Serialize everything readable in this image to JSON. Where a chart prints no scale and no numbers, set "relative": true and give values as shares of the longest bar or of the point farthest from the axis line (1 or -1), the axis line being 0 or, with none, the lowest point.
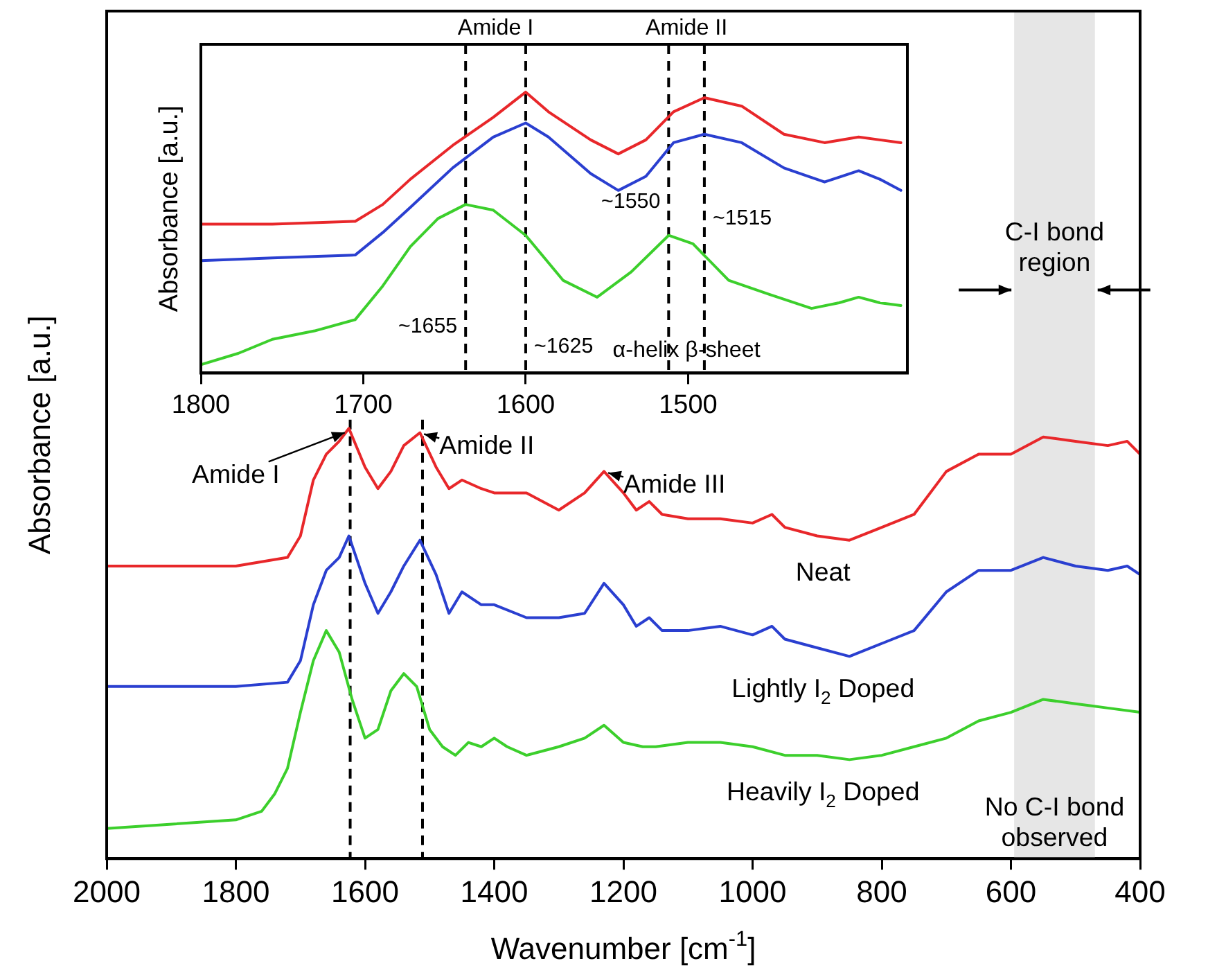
{
  "chart_data": [
    {
      "type": "line",
      "xlabel": "Wavenumber [cm$^{-1}$]",
      "ylabel": "Absorbance [a.u.]",
      "relative": true,
      "xlim": [
        2000,
        400
      ],
      "xticks": [
        2000,
        1800,
        1600,
        1400,
        1200,
        1000,
        800,
        600,
        400
      ],
      "tick_labels": "x",
      "grid": false,
      "legend": false,
      "marker": "none",
      "line_style": "solid",
      "x": [
        2000,
        1800,
        1720,
        1700,
        1680,
        1660,
        1640,
        1625,
        1600,
        1580,
        1560,
        1540,
        1515,
        1490,
        1470,
        1450,
        1420,
        1400,
        1350,
        1300,
        1260,
        1230,
        1200,
        1180,
        1160,
        1140,
        1100,
        1050,
        1000,
        970,
        950,
        900,
        850,
        800,
        750,
        700,
        650,
        600,
        550,
        500,
        450,
        420,
        400
      ],
      "series": [
        {
          "name": "Neat",
          "color": "#e8272a",
          "values": [
            0.68,
            0.68,
            0.7,
            0.75,
            0.88,
            0.94,
            0.97,
            1.0,
            0.91,
            0.86,
            0.9,
            0.96,
            0.99,
            0.91,
            0.86,
            0.88,
            0.86,
            0.85,
            0.85,
            0.81,
            0.85,
            0.9,
            0.85,
            0.81,
            0.83,
            0.8,
            0.79,
            0.79,
            0.78,
            0.8,
            0.77,
            0.75,
            0.74,
            0.77,
            0.8,
            0.9,
            0.94,
            0.94,
            0.98,
            0.97,
            0.96,
            0.97,
            0.94
          ]
        },
        {
          "name": "Lightly I$_{2}$ Doped",
          "color": "#2a3fd0",
          "values": [
            0.4,
            0.4,
            0.41,
            0.46,
            0.59,
            0.67,
            0.7,
            0.75,
            0.64,
            0.57,
            0.62,
            0.68,
            0.74,
            0.66,
            0.57,
            0.62,
            0.59,
            0.59,
            0.56,
            0.56,
            0.57,
            0.64,
            0.59,
            0.54,
            0.56,
            0.53,
            0.53,
            0.54,
            0.52,
            0.54,
            0.51,
            0.49,
            0.47,
            0.5,
            0.53,
            0.62,
            0.67,
            0.67,
            0.7,
            0.68,
            0.67,
            0.68,
            0.66
          ]
        },
        {
          "name": "Heavily I$_{2}$ Doped",
          "color": "#3ccf2c",
          "x": [
            2000,
            1800,
            1760,
            1740,
            1720,
            1700,
            1680,
            1660,
            1640,
            1620,
            1600,
            1580,
            1560,
            1540,
            1520,
            1500,
            1480,
            1460,
            1440,
            1420,
            1400,
            1380,
            1350,
            1300,
            1260,
            1230,
            1200,
            1170,
            1150,
            1100,
            1050,
            1000,
            950,
            900,
            850,
            800,
            750,
            700,
            650,
            600,
            550,
            500,
            450,
            400
          ],
          "values": [
            0.07,
            0.09,
            0.11,
            0.15,
            0.21,
            0.34,
            0.46,
            0.53,
            0.48,
            0.37,
            0.28,
            0.3,
            0.39,
            0.43,
            0.4,
            0.3,
            0.26,
            0.24,
            0.27,
            0.26,
            0.28,
            0.26,
            0.24,
            0.26,
            0.28,
            0.31,
            0.27,
            0.26,
            0.26,
            0.27,
            0.27,
            0.26,
            0.24,
            0.24,
            0.23,
            0.24,
            0.26,
            0.28,
            0.32,
            0.34,
            0.37,
            0.36,
            0.35,
            0.34
          ]
        }
      ],
      "ref_lines": [
        {
          "axis": "x",
          "value": 1623,
          "color": "#000000",
          "line_style": "dashed"
        },
        {
          "axis": "x",
          "value": 1511,
          "color": "#000000",
          "line_style": "dashed"
        }
      ],
      "bands": [
        {
          "axis": "x",
          "from": 595,
          "to": 470,
          "label": "C-I bond region",
          "color": "#e6e6e6"
        }
      ],
      "annotations": [
        {
          "text": "Amide I",
          "x": 1625,
          "y": 1.0
        },
        {
          "text": "Amide II",
          "x": 1515,
          "y": 0.99
        },
        {
          "text": "Amide III",
          "x": 1230,
          "y": 0.9
        },
        "No C-I bond observed"
      ]
    },
    {
      "type": "line",
      "ylabel": "Absorbance [a.u.]",
      "relative": true,
      "xlim": [
        1800,
        1365
      ],
      "xticks": [
        1800,
        1700,
        1600,
        1500
      ],
      "tick_labels": "x",
      "grid": false,
      "legend": false,
      "marker": "none",
      "line_style": "solid",
      "x": [
        1800,
        1756,
        1705,
        1688,
        1671,
        1645,
        1620,
        1600,
        1586,
        1560,
        1543,
        1526,
        1509,
        1490,
        1467,
        1441,
        1416,
        1395,
        1382,
        1369
      ],
      "series": [
        {
          "color": "#e8272a",
          "values": [
            0.53,
            0.53,
            0.54,
            0.6,
            0.69,
            0.81,
            0.91,
            1.0,
            0.93,
            0.83,
            0.78,
            0.83,
            0.93,
            0.98,
            0.95,
            0.85,
            0.82,
            0.84,
            0.83,
            0.82
          ]
        },
        {
          "color": "#2a3fd0",
          "values": [
            0.4,
            0.41,
            0.42,
            0.5,
            0.59,
            0.73,
            0.84,
            0.89,
            0.84,
            0.71,
            0.65,
            0.7,
            0.82,
            0.85,
            0.82,
            0.73,
            0.68,
            0.72,
            0.69,
            0.65
          ]
        },
        {
          "color": "#3ccf2c",
          "x": [
            1800,
            1777,
            1756,
            1730,
            1705,
            1688,
            1671,
            1654,
            1637,
            1620,
            1600,
            1577,
            1556,
            1535,
            1512,
            1497,
            1475,
            1450,
            1424,
            1407,
            1395,
            1382,
            1369
          ],
          "values": [
            0.03,
            0.07,
            0.12,
            0.15,
            0.19,
            0.31,
            0.45,
            0.55,
            0.6,
            0.58,
            0.49,
            0.33,
            0.27,
            0.36,
            0.49,
            0.46,
            0.33,
            0.28,
            0.23,
            0.25,
            0.27,
            0.25,
            0.24
          ]
        }
      ],
      "ref_lines": [
        {
          "axis": "x",
          "value": 1637,
          "color": "#000000",
          "line_style": "dashed"
        },
        {
          "axis": "x",
          "value": 1600,
          "color": "#000000",
          "line_style": "dashed"
        },
        {
          "axis": "x",
          "value": 1512,
          "color": "#000000",
          "line_style": "dashed"
        },
        {
          "axis": "x",
          "value": 1490,
          "color": "#000000",
          "line_style": "dashed"
        }
      ],
      "annotations": [
        "Amide I",
        "Amide II",
        "~1655",
        "~1625",
        "~1550",
        "~1515",
        "α-helix β-sheet"
      ]
    }
  ]
}
